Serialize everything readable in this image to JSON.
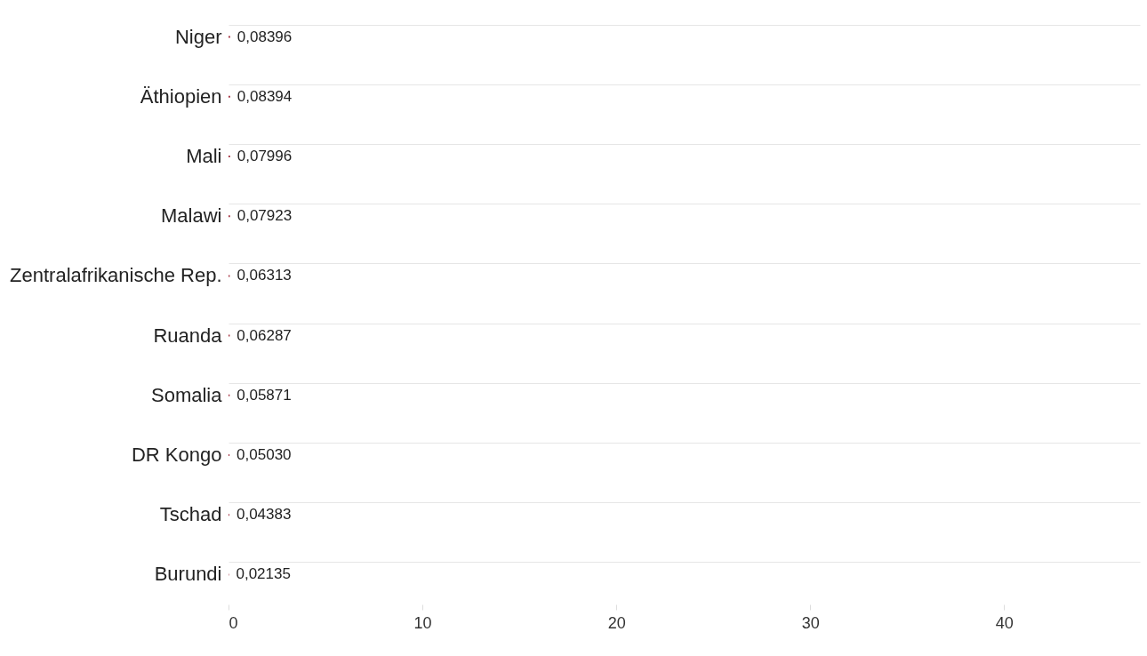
{
  "chart_data": {
    "type": "bar",
    "orientation": "horizontal",
    "categories": [
      "Niger",
      "Äthiopien",
      "Mali",
      "Malawi",
      "Zentralafrikanische Rep.",
      "Ruanda",
      "Somalia",
      "DR Kongo",
      "Tschad",
      "Burundi"
    ],
    "values": [
      0.08396,
      0.08394,
      0.07996,
      0.07923,
      0.06313,
      0.06287,
      0.05871,
      0.0503,
      0.04383,
      0.02135
    ],
    "value_labels": [
      "0,08396",
      "0,08394",
      "0,07996",
      "0,07923",
      "0,06313",
      "0,06287",
      "0,05871",
      "0,05030",
      "0,04383",
      "0,02135"
    ],
    "color": "#a3303f",
    "xlim": [
      0,
      47
    ],
    "xticks": [
      0,
      10,
      20,
      30,
      40
    ],
    "grid": "y"
  }
}
